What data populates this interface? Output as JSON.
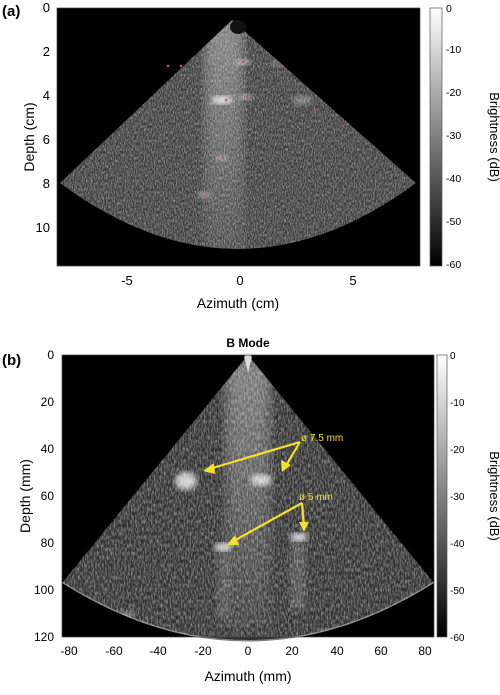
{
  "panels": [
    {
      "label": "(a)",
      "title": "",
      "xlabel": "Azimuth (cm)",
      "ylabel": "Depth (cm)",
      "xticks": [
        "-5",
        "0",
        "5"
      ],
      "yticks": [
        "0",
        "2",
        "4",
        "6",
        "8",
        "10"
      ],
      "colorbar": {
        "label": "Brightness (dB)",
        "ticks": [
          "0",
          "-10",
          "-20",
          "-30",
          "-40",
          "-50",
          "-60"
        ]
      },
      "annotations": []
    },
    {
      "label": "(b)",
      "title": "B Mode",
      "xlabel": "Azimuth (mm)",
      "ylabel": "Depth (mm)",
      "xticks": [
        "-80",
        "-60",
        "-40",
        "-20",
        "0",
        "20",
        "40",
        "60",
        "80"
      ],
      "yticks": [
        "0",
        "20",
        "40",
        "60",
        "80",
        "100",
        "120"
      ],
      "colorbar": {
        "label": "Brightness (dB)",
        "ticks": [
          "0",
          "-10",
          "-20",
          "-30",
          "-40",
          "-50",
          "-60"
        ]
      },
      "annotations": [
        {
          "text": "ø 7.5 mm"
        },
        {
          "text": "ø 5 mm"
        }
      ]
    }
  ],
  "colors": {
    "annotation": "#f5e12a",
    "background": "#000000",
    "marker": "#c8506e"
  }
}
